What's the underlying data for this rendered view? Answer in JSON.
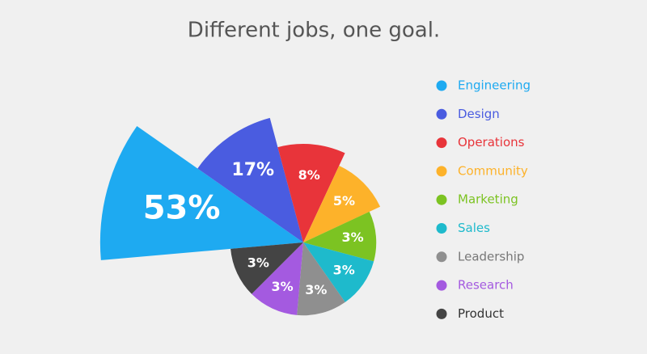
{
  "chart_data": {
    "type": "pie",
    "title": "Different jobs, one goal.",
    "categories": [
      "Engineering",
      "Design",
      "Operations",
      "Community",
      "Marketing",
      "Sales",
      "Leadership",
      "Research",
      "Product"
    ],
    "values": [
      53,
      17,
      8,
      5,
      3,
      3,
      3,
      3,
      3
    ],
    "value_labels": [
      "53%",
      "17%",
      "8%",
      "5%",
      "3%",
      "3%",
      "3%",
      "3%",
      "3%"
    ],
    "colors": [
      "#1eaaf1",
      "#4a5ce0",
      "#e8343a",
      "#fdb22a",
      "#7cc322",
      "#1ebacc",
      "#8f8f8f",
      "#a45ae0",
      "#444444"
    ],
    "legend": "right"
  }
}
